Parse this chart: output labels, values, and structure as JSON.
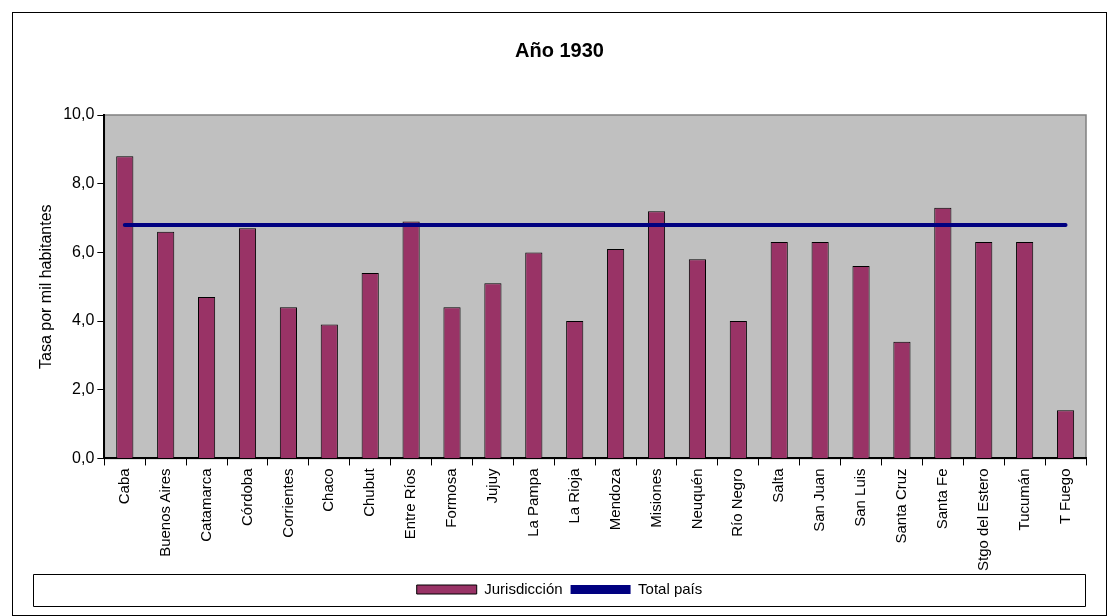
{
  "chart_data": {
    "type": "bar",
    "title": "Año 1930",
    "ylabel": "Tasa por mil habitantes",
    "categories": [
      "Caba",
      "Buenos Aires",
      "Catamarca",
      "Córdoba",
      "Corrientes",
      "Chaco",
      "Chubut",
      "Entre Ríos",
      "Formosa",
      "Jujuy",
      "La Pampa",
      "La Rioja",
      "Mendoza",
      "Misiones",
      "Neuquén",
      "Río Negro",
      "Salta",
      "San Juan",
      "San Luis",
      "Santa Cruz",
      "Santa Fe",
      "Stgo del Estero",
      "Tucumán",
      "T Fuego"
    ],
    "series": [
      {
        "name": "Jurisdicción",
        "color": "#993366",
        "values": [
          8.8,
          6.6,
          4.7,
          6.7,
          4.4,
          3.9,
          5.4,
          6.9,
          4.4,
          5.1,
          6.0,
          4.0,
          6.1,
          7.2,
          5.8,
          4.0,
          6.3,
          6.3,
          5.6,
          3.4,
          7.3,
          6.3,
          6.3,
          1.4
        ]
      },
      {
        "name": "Total país",
        "type": "line",
        "color": "#000080",
        "values": [
          6.8,
          6.8,
          6.8,
          6.8,
          6.8,
          6.8,
          6.8,
          6.8,
          6.8,
          6.8,
          6.8,
          6.8,
          6.8,
          6.8,
          6.8,
          6.8,
          6.8,
          6.8,
          6.8,
          6.8,
          6.8,
          6.8,
          6.8,
          6.8
        ]
      }
    ],
    "ylim": [
      0,
      10
    ],
    "yticks": [
      {
        "value": 0,
        "label": "0,0"
      },
      {
        "value": 2,
        "label": "2,0"
      },
      {
        "value": 4,
        "label": "4,0"
      },
      {
        "value": 6,
        "label": "6,0"
      },
      {
        "value": 8,
        "label": "8,0"
      },
      {
        "value": 10,
        "label": "10,0"
      }
    ],
    "grid": false,
    "legend": "bottom",
    "marker": "none",
    "line_style": "solid"
  }
}
